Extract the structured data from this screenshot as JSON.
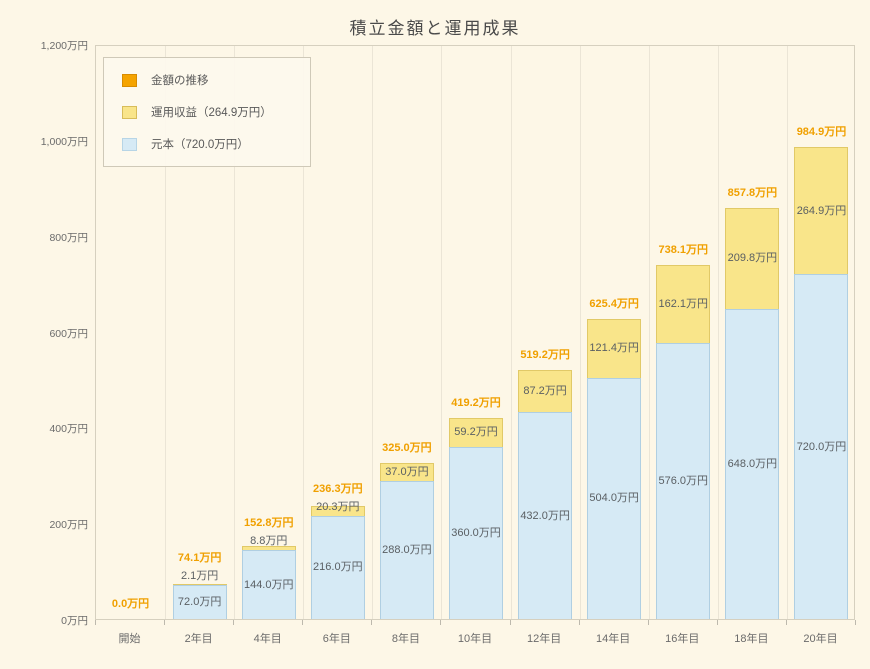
{
  "chart_data": {
    "type": "bar",
    "stacked": true,
    "title": "積立金額と運用成果",
    "categories": [
      "開始",
      "2年目",
      "4年目",
      "6年目",
      "8年目",
      "10年目",
      "12年目",
      "14年目",
      "16年目",
      "18年目",
      "20年目"
    ],
    "series": [
      {
        "name": "元本（720.0万円）",
        "color": "#d6eaf5",
        "values": [
          0,
          72.0,
          144.0,
          216.0,
          288.0,
          360.0,
          432.0,
          504.0,
          576.0,
          648.0,
          720.0
        ]
      },
      {
        "name": "運用収益（264.9万円）",
        "color": "#f9e58a",
        "values": [
          0,
          2.1,
          8.8,
          20.3,
          37.0,
          59.2,
          87.2,
          121.4,
          162.1,
          209.8,
          264.9
        ]
      }
    ],
    "totals": [
      0.0,
      74.1,
      152.8,
      236.3,
      325.0,
      419.2,
      519.2,
      625.4,
      738.1,
      857.8,
      984.9
    ],
    "unit": "万円",
    "ylim": [
      0,
      1200
    ],
    "y_ticks": [
      "0万円",
      "200万円",
      "400万円",
      "600万円",
      "800万円",
      "1,000万円",
      "1,200万円"
    ],
    "legend_position": "top-left-inside",
    "grid": "vertical-only",
    "legend": [
      {
        "label": "金額の推移",
        "color": "#f5a400",
        "border": "#d88c00"
      },
      {
        "label": "運用収益（264.9万円）",
        "color": "#f9e58a",
        "border": "#d8bd5a"
      },
      {
        "label": "元本（720.0万円）",
        "color": "#d6eaf5",
        "border": "#b7d5e6"
      }
    ],
    "colors": {
      "background": "#fdf7e7",
      "total_label": "#f0a000",
      "segment_label": "#5a5f63",
      "axis_text": "#6b6b6b"
    }
  }
}
